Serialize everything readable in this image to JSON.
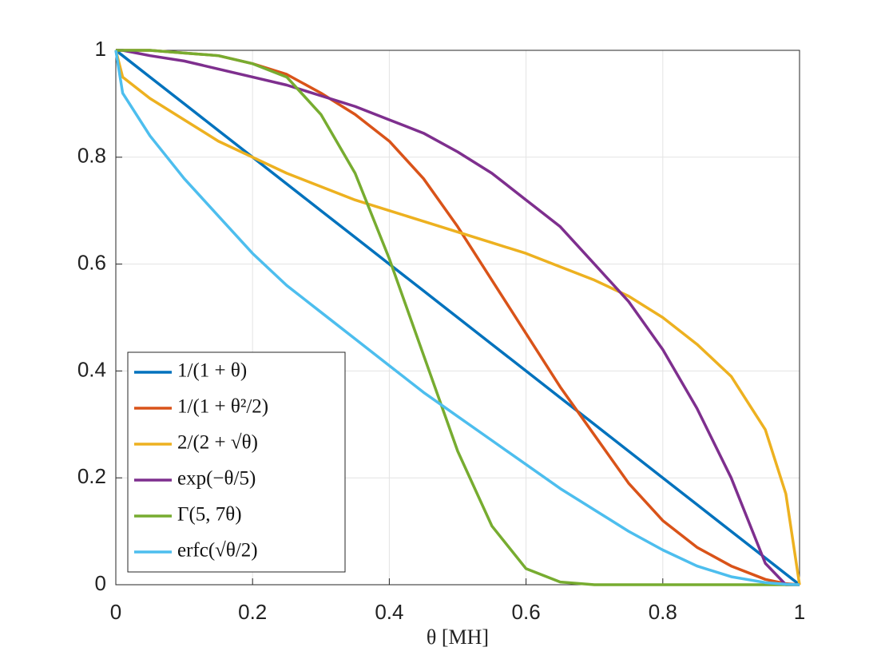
{
  "chart_data": {
    "type": "line",
    "xlabel": "θ [MH]",
    "x": [
      0,
      0.01,
      0.05,
      0.1,
      0.15,
      0.2,
      0.25,
      0.3,
      0.35,
      0.4,
      0.45,
      0.5,
      0.55,
      0.6,
      0.65,
      0.7,
      0.75,
      0.8,
      0.85,
      0.9,
      0.95,
      0.98,
      1
    ],
    "xlim": [
      0,
      1
    ],
    "ylim": [
      0,
      1
    ],
    "xticks": [
      0,
      0.2,
      0.4,
      0.6,
      0.8,
      1
    ],
    "yticks": [
      0,
      0.2,
      0.4,
      0.6,
      0.8,
      1
    ],
    "grid": true,
    "legend": "lower left",
    "series": [
      {
        "name": "1/(1 + θ)",
        "color": "#0072BD",
        "values": [
          1,
          0.99,
          0.95,
          0.9,
          0.85,
          0.8,
          0.75,
          0.7,
          0.65,
          0.6,
          0.55,
          0.5,
          0.45,
          0.4,
          0.35,
          0.3,
          0.25,
          0.2,
          0.15,
          0.1,
          0.05,
          0.02,
          0
        ]
      },
      {
        "name": "1/(1 + θ²/2)",
        "color": "#D95319",
        "values": [
          1,
          1,
          1,
          0.995,
          0.99,
          0.975,
          0.955,
          0.92,
          0.88,
          0.83,
          0.76,
          0.67,
          0.57,
          0.47,
          0.37,
          0.28,
          0.19,
          0.12,
          0.07,
          0.035,
          0.01,
          0.002,
          0
        ]
      },
      {
        "name": "2/(2 + √θ)",
        "color": "#EDB120",
        "values": [
          1,
          0.95,
          0.91,
          0.87,
          0.83,
          0.8,
          0.77,
          0.745,
          0.72,
          0.7,
          0.68,
          0.66,
          0.64,
          0.62,
          0.595,
          0.57,
          0.54,
          0.5,
          0.45,
          0.39,
          0.29,
          0.17,
          0
        ]
      },
      {
        "name": "exp(−θ/5)",
        "color": "#7E2F8E",
        "values": [
          1,
          1,
          0.99,
          0.98,
          0.965,
          0.95,
          0.935,
          0.915,
          0.895,
          0.87,
          0.845,
          0.81,
          0.77,
          0.72,
          0.67,
          0.6,
          0.53,
          0.44,
          0.33,
          0.2,
          0.04,
          0,
          0
        ]
      },
      {
        "name": "Γ(5, 7θ)",
        "color": "#77AC30",
        "values": [
          1,
          1,
          1,
          0.995,
          0.99,
          0.975,
          0.95,
          0.88,
          0.77,
          0.61,
          0.43,
          0.25,
          0.11,
          0.03,
          0.005,
          0,
          0,
          0,
          0,
          0,
          0,
          0,
          0
        ]
      },
      {
        "name": "erfc(√θ/2)",
        "color": "#4DBEEE",
        "values": [
          1,
          0.92,
          0.84,
          0.76,
          0.69,
          0.62,
          0.56,
          0.51,
          0.46,
          0.41,
          0.36,
          0.315,
          0.27,
          0.225,
          0.18,
          0.14,
          0.1,
          0.065,
          0.035,
          0.015,
          0.004,
          0.001,
          0
        ]
      }
    ]
  }
}
